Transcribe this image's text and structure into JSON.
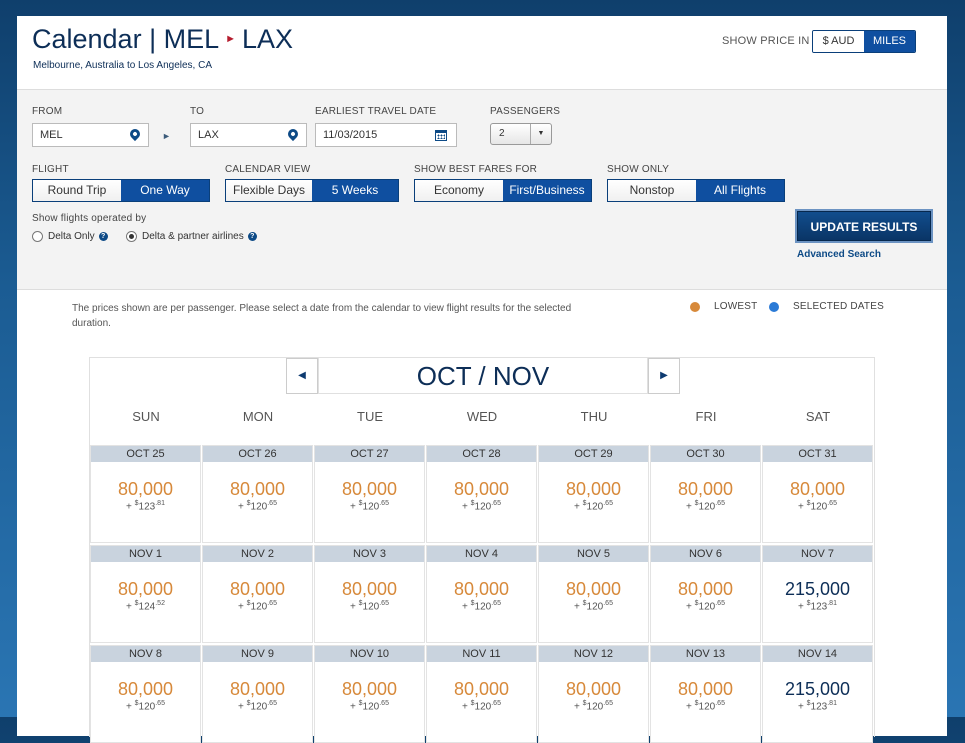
{
  "header": {
    "title_main": "Calendar | MEL",
    "title_dest": "LAX",
    "subtitle": "Melbourne, Australia to Los Angeles, CA",
    "show_price_label": "SHOW PRICE IN",
    "price_options": [
      "$ AUD",
      "MILES"
    ],
    "price_selected": "MILES"
  },
  "form": {
    "from_label": "FROM",
    "from_value": "MEL",
    "to_label": "TO",
    "to_value": "LAX",
    "date_label": "EARLIEST TRAVEL DATE",
    "date_value": "11/03/2015",
    "passengers_label": "PASSENGERS",
    "passengers_value": "2",
    "flight_label": "FLIGHT",
    "flight_options": [
      "Round Trip",
      "One Way"
    ],
    "calendar_view_label": "CALENDAR VIEW",
    "calendar_view_options": [
      "Flexible Days",
      "5 Weeks"
    ],
    "best_fares_label": "SHOW BEST FARES FOR",
    "best_fares_options": [
      "Economy",
      "First/Business"
    ],
    "show_only_label": "SHOW ONLY",
    "show_only_options": [
      "Nonstop",
      "All Flights"
    ],
    "operated_label": "Show flights operated by",
    "operated_options": [
      "Delta Only",
      "Delta & partner airlines"
    ],
    "update_button": "UPDATE RESULTS",
    "advanced_search": "Advanced Search"
  },
  "results": {
    "note": "The prices shown are per passenger. Please select a date from the calendar to view flight results for the selected duration.",
    "legend_lowest": "LOWEST",
    "legend_selected": "SELECTED DATES",
    "colors": {
      "lowest": "#d7893a",
      "selected": "#2a7ad6",
      "accent": "#0f4fa0"
    },
    "month": "OCT / NOV",
    "days": [
      "SUN",
      "MON",
      "TUE",
      "WED",
      "THU",
      "FRI",
      "SAT"
    ],
    "weeks": [
      [
        {
          "date": "OCT 25",
          "miles": "80,000",
          "tax_int": "123",
          "tax_dec": "81",
          "lowest": true
        },
        {
          "date": "OCT 26",
          "miles": "80,000",
          "tax_int": "120",
          "tax_dec": "65",
          "lowest": true
        },
        {
          "date": "OCT 27",
          "miles": "80,000",
          "tax_int": "120",
          "tax_dec": "65",
          "lowest": true
        },
        {
          "date": "OCT 28",
          "miles": "80,000",
          "tax_int": "120",
          "tax_dec": "65",
          "lowest": true
        },
        {
          "date": "OCT 29",
          "miles": "80,000",
          "tax_int": "120",
          "tax_dec": "65",
          "lowest": true
        },
        {
          "date": "OCT 30",
          "miles": "80,000",
          "tax_int": "120",
          "tax_dec": "65",
          "lowest": true
        },
        {
          "date": "OCT 31",
          "miles": "80,000",
          "tax_int": "120",
          "tax_dec": "65",
          "lowest": true
        }
      ],
      [
        {
          "date": "NOV 1",
          "miles": "80,000",
          "tax_int": "124",
          "tax_dec": "52",
          "lowest": true
        },
        {
          "date": "NOV 2",
          "miles": "80,000",
          "tax_int": "120",
          "tax_dec": "65",
          "lowest": true
        },
        {
          "date": "NOV 3",
          "miles": "80,000",
          "tax_int": "120",
          "tax_dec": "65",
          "lowest": true
        },
        {
          "date": "NOV 4",
          "miles": "80,000",
          "tax_int": "120",
          "tax_dec": "65",
          "lowest": true
        },
        {
          "date": "NOV 5",
          "miles": "80,000",
          "tax_int": "120",
          "tax_dec": "65",
          "lowest": true
        },
        {
          "date": "NOV 6",
          "miles": "80,000",
          "tax_int": "120",
          "tax_dec": "65",
          "lowest": true
        },
        {
          "date": "NOV 7",
          "miles": "215,000",
          "tax_int": "123",
          "tax_dec": "81",
          "lowest": false
        }
      ],
      [
        {
          "date": "NOV 8",
          "miles": "80,000",
          "tax_int": "120",
          "tax_dec": "65",
          "lowest": true
        },
        {
          "date": "NOV 9",
          "miles": "80,000",
          "tax_int": "120",
          "tax_dec": "65",
          "lowest": true
        },
        {
          "date": "NOV 10",
          "miles": "80,000",
          "tax_int": "120",
          "tax_dec": "65",
          "lowest": true
        },
        {
          "date": "NOV 11",
          "miles": "80,000",
          "tax_int": "120",
          "tax_dec": "65",
          "lowest": true
        },
        {
          "date": "NOV 12",
          "miles": "80,000",
          "tax_int": "120",
          "tax_dec": "65",
          "lowest": true
        },
        {
          "date": "NOV 13",
          "miles": "80,000",
          "tax_int": "120",
          "tax_dec": "65",
          "lowest": true
        },
        {
          "date": "NOV 14",
          "miles": "215,000",
          "tax_int": "123",
          "tax_dec": "81",
          "lowest": false
        }
      ]
    ]
  }
}
